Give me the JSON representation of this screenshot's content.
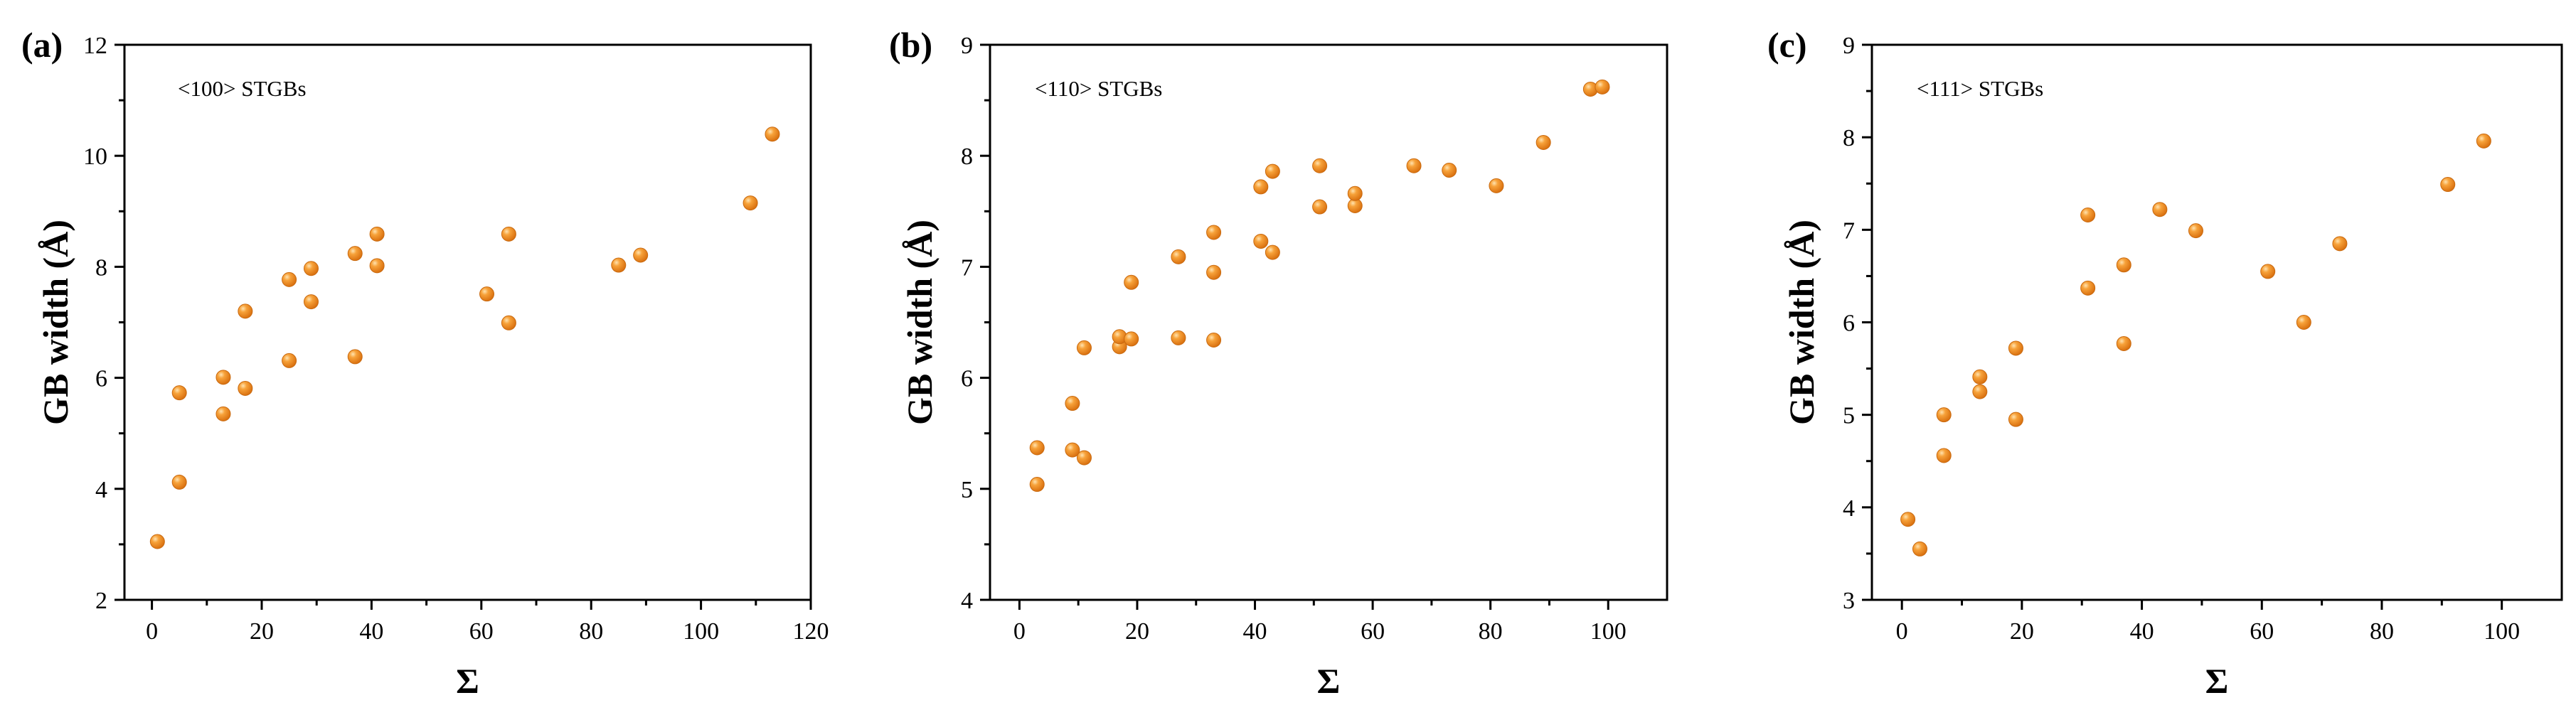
{
  "figure": {
    "panels": [
      "(a)",
      "(b)",
      "(c)"
    ]
  },
  "style": {
    "marker_color": "#F28C28",
    "marker_highlight": "#FFD08A",
    "marker_edge": "#C96A10"
  },
  "chart_data": [
    {
      "type": "scatter",
      "panel_label": "(a)",
      "annotation": "<100> STGBs",
      "xlabel": "Σ",
      "ylabel": "GB width (Å)",
      "xlim": [
        -5,
        120
      ],
      "ylim": [
        2,
        12
      ],
      "xticks": [
        0,
        20,
        40,
        60,
        80,
        100,
        120
      ],
      "yticks": [
        2,
        4,
        6,
        8,
        10,
        12
      ],
      "x_tick_labels": [
        "0",
        "20",
        "40",
        "60",
        "80",
        "100",
        "120"
      ],
      "y_tick_labels": [
        "2",
        "4",
        "6",
        "8",
        "10",
        "12"
      ],
      "grid": false,
      "points": [
        [
          1,
          3.05
        ],
        [
          5,
          4.12
        ],
        [
          5,
          5.73
        ],
        [
          13,
          5.35
        ],
        [
          13,
          6.01
        ],
        [
          17,
          5.81
        ],
        [
          17,
          7.2
        ],
        [
          25,
          6.31
        ],
        [
          25,
          7.77
        ],
        [
          29,
          7.37
        ],
        [
          29,
          7.97
        ],
        [
          37,
          6.38
        ],
        [
          37,
          8.24
        ],
        [
          41,
          8.02
        ],
        [
          41,
          8.59
        ],
        [
          61,
          7.51
        ],
        [
          65,
          6.99
        ],
        [
          65,
          8.59
        ],
        [
          85,
          8.03
        ],
        [
          89,
          8.21
        ],
        [
          109,
          9.15
        ],
        [
          113,
          10.39
        ]
      ]
    },
    {
      "type": "scatter",
      "panel_label": "(b)",
      "annotation": "<110> STGBs",
      "xlabel": "Σ",
      "ylabel": "GB width (Å)",
      "xlim": [
        -5,
        110
      ],
      "ylim": [
        4,
        9
      ],
      "xticks": [
        0,
        20,
        40,
        60,
        80,
        100
      ],
      "yticks": [
        4,
        5,
        6,
        7,
        8,
        9
      ],
      "x_tick_labels": [
        "0",
        "20",
        "40",
        "60",
        "80",
        "100"
      ],
      "y_tick_labels": [
        "4",
        "5",
        "6",
        "7",
        "8",
        "9"
      ],
      "grid": false,
      "points": [
        [
          3,
          5.04
        ],
        [
          3,
          5.37
        ],
        [
          9,
          5.35
        ],
        [
          9,
          5.77
        ],
        [
          11,
          5.28
        ],
        [
          11,
          6.27
        ],
        [
          17,
          6.28
        ],
        [
          17,
          6.37
        ],
        [
          19,
          6.35
        ],
        [
          19,
          6.86
        ],
        [
          27,
          6.36
        ],
        [
          27,
          7.09
        ],
        [
          33,
          6.34
        ],
        [
          33,
          6.95
        ],
        [
          33,
          7.31
        ],
        [
          41,
          7.23
        ],
        [
          41,
          7.72
        ],
        [
          43,
          7.13
        ],
        [
          43,
          7.86
        ],
        [
          51,
          7.54
        ],
        [
          51,
          7.91
        ],
        [
          57,
          7.55
        ],
        [
          57,
          7.66
        ],
        [
          67,
          7.91
        ],
        [
          73,
          7.87
        ],
        [
          81,
          7.73
        ],
        [
          89,
          8.12
        ],
        [
          97,
          8.6
        ],
        [
          99,
          8.62
        ]
      ]
    },
    {
      "type": "scatter",
      "panel_label": "(c)",
      "annotation": "<111> STGBs",
      "xlabel": "Σ",
      "ylabel": "GB width (Å)",
      "xlim": [
        -5,
        110
      ],
      "ylim": [
        3,
        9
      ],
      "xticks": [
        0,
        20,
        40,
        60,
        80,
        100
      ],
      "yticks": [
        3,
        4,
        5,
        6,
        7,
        8,
        9
      ],
      "x_tick_labels": [
        "0",
        "20",
        "40",
        "60",
        "80",
        "100"
      ],
      "y_tick_labels": [
        "3",
        "4",
        "5",
        "6",
        "7",
        "8",
        "9"
      ],
      "grid": false,
      "points": [
        [
          1,
          3.87
        ],
        [
          3,
          3.55
        ],
        [
          7,
          4.56
        ],
        [
          7,
          5.0
        ],
        [
          13,
          5.25
        ],
        [
          13,
          5.41
        ],
        [
          19,
          4.95
        ],
        [
          19,
          5.72
        ],
        [
          31,
          6.37
        ],
        [
          31,
          7.16
        ],
        [
          37,
          5.77
        ],
        [
          37,
          6.62
        ],
        [
          43,
          7.22
        ],
        [
          49,
          6.99
        ],
        [
          61,
          6.55
        ],
        [
          67,
          6.0
        ],
        [
          73,
          6.85
        ],
        [
          91,
          7.49
        ],
        [
          97,
          7.96
        ]
      ]
    }
  ]
}
